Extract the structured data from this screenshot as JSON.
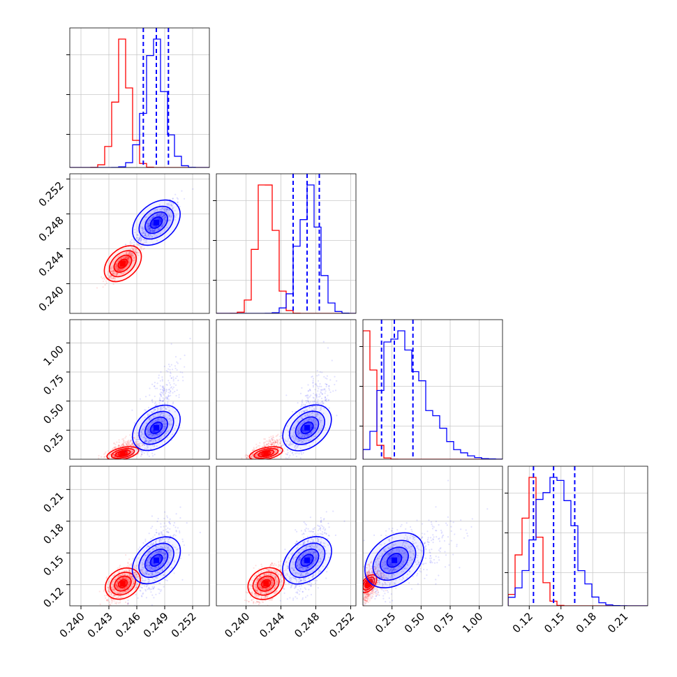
{
  "chart_data": {
    "type": "corner",
    "parameters": 4,
    "grid": true,
    "colors": {
      "series_a": "#ff0000",
      "series_b": "#0000ff"
    },
    "series": [
      {
        "color": "#ff0000",
        "means": [
          0.2445,
          0.2423,
          0.05,
          0.121
        ],
        "hist_peaks": [
          0.2445,
          0.2423,
          0.02,
          0.121
        ]
      },
      {
        "color": "#0000ff",
        "means": [
          0.2481,
          0.247,
          0.27,
          0.143
        ],
        "hist_peaks": [
          0.248,
          0.2472,
          0.27,
          0.143
        ],
        "quantile_lines": [
          [
            0.2467,
            0.2481,
            0.2494
          ],
          [
            0.2454,
            0.247,
            0.2484
          ],
          [
            0.16,
            0.27,
            0.43
          ],
          [
            0.124,
            0.143,
            0.163
          ]
        ]
      }
    ],
    "axes": [
      {
        "range": [
          0.2388,
          0.2538
        ],
        "ticks": [
          "0.240",
          "0.243",
          "0.246",
          "0.249",
          "0.252"
        ],
        "tick_values": [
          0.24,
          0.243,
          0.246,
          0.249,
          0.252
        ]
      },
      {
        "range": [
          0.2366,
          0.2526
        ],
        "ticks": [
          "0.240",
          "0.244",
          "0.248",
          "0.252"
        ],
        "tick_values": [
          0.24,
          0.244,
          0.248,
          0.252
        ]
      },
      {
        "range": [
          0.0,
          1.2
        ],
        "ticks": [
          "0.25",
          "0.50",
          "0.75",
          "1.00"
        ],
        "tick_values": [
          0.25,
          0.5,
          0.75,
          1.0
        ]
      },
      {
        "range": [
          0.1,
          0.232
        ],
        "ticks": [
          "0.12",
          "0.15",
          "0.18",
          "0.21"
        ],
        "tick_values": [
          0.12,
          0.15,
          0.18,
          0.21
        ]
      }
    ]
  }
}
